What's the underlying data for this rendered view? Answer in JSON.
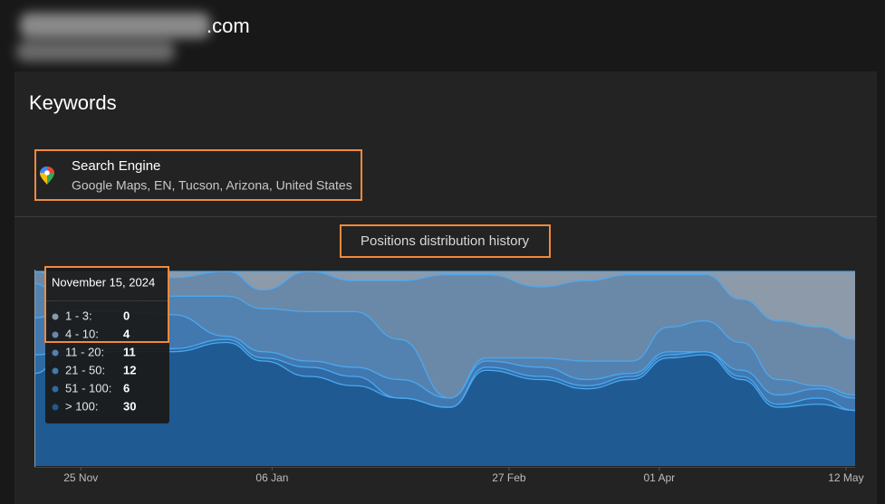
{
  "header": {
    "title": ".com"
  },
  "card": {
    "title": "Keywords",
    "search_engine": {
      "label": "Search Engine",
      "value": "Google Maps, EN, Tucson, Arizona, United States"
    }
  },
  "chart_data": {
    "type": "stacked_area",
    "title": "Positions distribution history",
    "x": [
      "2024-11-15",
      "2024-11-21",
      "2024-12-03",
      "2024-12-15",
      "2024-12-27",
      "2025-01-04",
      "2025-01-14",
      "2025-01-24",
      "2025-02-03",
      "2025-02-14",
      "2025-02-22",
      "2025-03-06",
      "2025-03-16",
      "2025-03-26",
      "2025-04-03",
      "2025-04-11",
      "2025-04-19",
      "2025-04-27",
      "2025-05-06",
      "2025-05-14"
    ],
    "xlim": [
      "2024-11-15",
      "2025-05-14"
    ],
    "xticks": [
      {
        "value": "2024-11-25",
        "label": "25 Nov"
      },
      {
        "value": "2025-01-06",
        "label": "06 Jan"
      },
      {
        "value": "2025-02-27",
        "label": "27 Feb"
      },
      {
        "value": "2025-04-01",
        "label": "01 Apr"
      },
      {
        "value": "2025-05-12",
        "label": "12 May"
      }
    ],
    "ylim": [
      0,
      63
    ],
    "line_color": "#4aa8f0",
    "series": [
      {
        "name": "1 - 3:",
        "color": "#8c9aaa",
        "values": [
          0,
          3,
          2,
          2,
          0,
          6,
          0,
          3,
          3,
          1,
          1,
          5,
          3,
          1,
          1,
          1,
          9,
          16,
          18,
          22
        ]
      },
      {
        "name": "4 - 10:",
        "color": "#6a88a8",
        "values": [
          4,
          6,
          7,
          6,
          8,
          6,
          13,
          10,
          19,
          40,
          27,
          23,
          26,
          28,
          17,
          15,
          14,
          19,
          19,
          18
        ]
      },
      {
        "name": "11 - 20:",
        "color": "#5482b0",
        "values": [
          11,
          4,
          4,
          6,
          13,
          14,
          16,
          18,
          13,
          0,
          1,
          3,
          6,
          4,
          8,
          10,
          9,
          5,
          1,
          1
        ]
      },
      {
        "name": "21 - 50:",
        "color": "#4178b0",
        "values": [
          12,
          13,
          12,
          11,
          1,
          2,
          2,
          3,
          6,
          3,
          2,
          3,
          2,
          1,
          1,
          0,
          2,
          3,
          3,
          4
        ]
      },
      {
        "name": "51 - 100:",
        "color": "#2f6aa4",
        "values": [
          6,
          1,
          1,
          1,
          1,
          1,
          3,
          3,
          0,
          0,
          1,
          1,
          1,
          1,
          1,
          1,
          1,
          1,
          2,
          0
        ]
      },
      {
        "name": "> 100:",
        "color": "#1f5a92",
        "values": [
          30,
          36,
          37,
          37,
          40,
          34,
          29,
          26,
          22,
          19,
          31,
          28,
          25,
          28,
          35,
          36,
          28,
          19,
          20,
          18
        ]
      }
    ],
    "tooltip": {
      "title": "November 15, 2024",
      "index": 0
    }
  }
}
